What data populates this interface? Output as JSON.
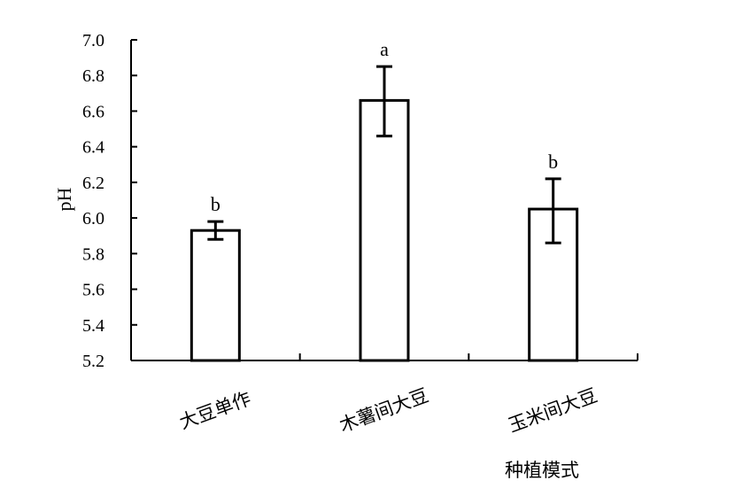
{
  "chart_data": {
    "type": "bar",
    "ylabel": "pH",
    "xlabel": "种植模式",
    "ylim": [
      5.2,
      7.0
    ],
    "yticks": [
      "5.2",
      "5.4",
      "5.6",
      "5.8",
      "6.0",
      "6.2",
      "6.4",
      "6.6",
      "6.8",
      "7.0"
    ],
    "categories": [
      "大豆单作",
      "木薯间大豆",
      "玉米间大豆"
    ],
    "values": [
      5.93,
      6.66,
      6.05
    ],
    "error_low": [
      5.88,
      6.46,
      5.86
    ],
    "error_high": [
      5.98,
      6.85,
      6.22
    ],
    "significance": [
      "b",
      "a",
      "b"
    ],
    "grid": false,
    "bar_fill": "#ffffff",
    "bar_stroke": "#000000"
  }
}
